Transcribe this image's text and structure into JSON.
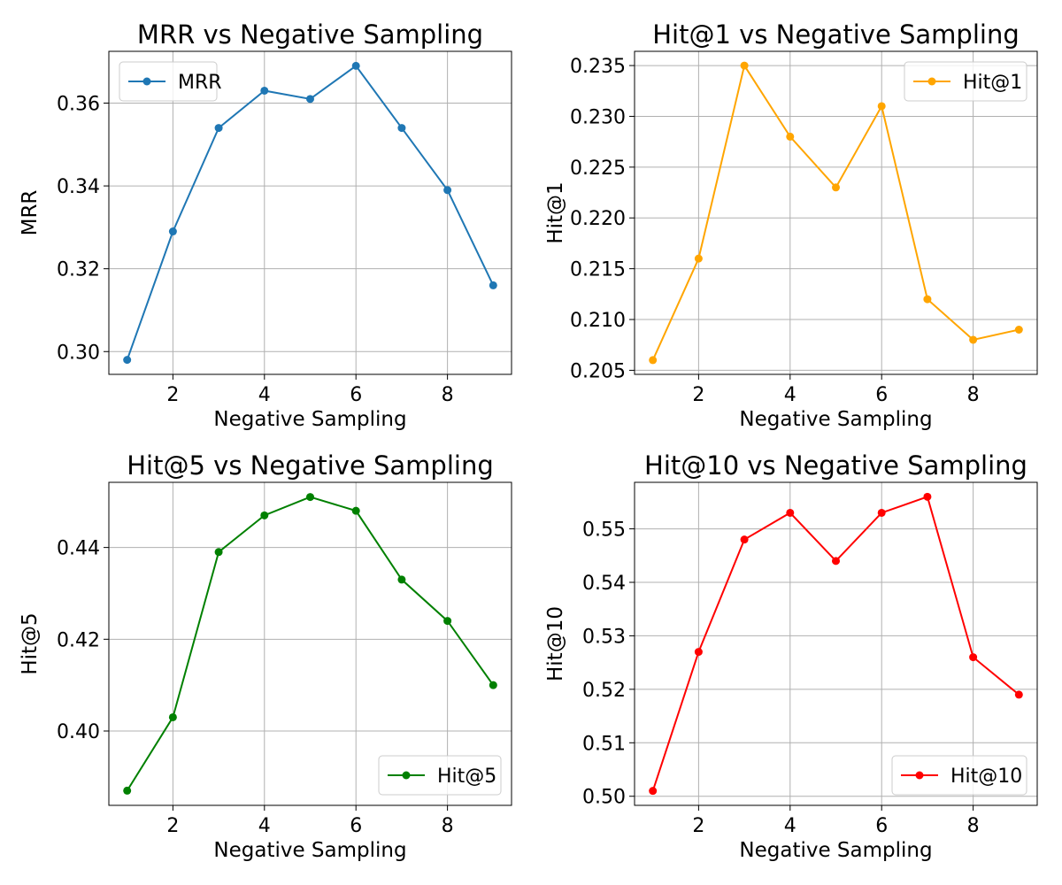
{
  "chart_data": [
    {
      "type": "line",
      "title": "MRR vs Negative Sampling",
      "xlabel": "Negative Sampling",
      "ylabel": "MRR",
      "x": [
        1,
        2,
        3,
        4,
        5,
        6,
        7,
        8,
        9
      ],
      "series": [
        {
          "name": "MRR",
          "color": "#1f77b4",
          "values": [
            0.298,
            0.329,
            0.354,
            0.363,
            0.361,
            0.369,
            0.354,
            0.339,
            0.316
          ]
        }
      ],
      "xlim": [
        0.6,
        9.4
      ],
      "ylim": [
        0.2945,
        0.3725
      ],
      "xticks": [
        2,
        4,
        6,
        8
      ],
      "xtick_labels": [
        "2",
        "4",
        "6",
        "8"
      ],
      "yticks": [
        0.3,
        0.32,
        0.34,
        0.36
      ],
      "ytick_labels": [
        "0.30",
        "0.32",
        "0.34",
        "0.36"
      ],
      "grid": true,
      "legend": "upper left"
    },
    {
      "type": "line",
      "title": "Hit@1 vs Negative Sampling",
      "xlabel": "Negative Sampling",
      "ylabel": "Hit@1",
      "x": [
        1,
        2,
        3,
        4,
        5,
        6,
        7,
        8,
        9
      ],
      "series": [
        {
          "name": "Hit@1",
          "color": "#ffa500",
          "values": [
            0.206,
            0.216,
            0.235,
            0.228,
            0.223,
            0.231,
            0.212,
            0.208,
            0.209
          ]
        }
      ],
      "xlim": [
        0.6,
        9.4
      ],
      "ylim": [
        0.2046,
        0.2364
      ],
      "xticks": [
        2,
        4,
        6,
        8
      ],
      "xtick_labels": [
        "2",
        "4",
        "6",
        "8"
      ],
      "yticks": [
        0.205,
        0.21,
        0.215,
        0.22,
        0.225,
        0.23,
        0.235
      ],
      "ytick_labels": [
        "0.205",
        "0.210",
        "0.215",
        "0.220",
        "0.225",
        "0.230",
        "0.235"
      ],
      "grid": true,
      "legend": "upper right"
    },
    {
      "type": "line",
      "title": "Hit@5 vs Negative Sampling",
      "xlabel": "Negative Sampling",
      "ylabel": "Hit@5",
      "x": [
        1,
        2,
        3,
        4,
        5,
        6,
        7,
        8,
        9
      ],
      "series": [
        {
          "name": "Hit@5",
          "color": "#008000",
          "values": [
            0.387,
            0.403,
            0.439,
            0.447,
            0.451,
            0.448,
            0.433,
            0.424,
            0.41
          ]
        }
      ],
      "xlim": [
        0.6,
        9.4
      ],
      "ylim": [
        0.3838,
        0.4542
      ],
      "xticks": [
        2,
        4,
        6,
        8
      ],
      "xtick_labels": [
        "2",
        "4",
        "6",
        "8"
      ],
      "yticks": [
        0.4,
        0.42,
        0.44
      ],
      "ytick_labels": [
        "0.40",
        "0.42",
        "0.44"
      ],
      "grid": true,
      "legend": "lower right"
    },
    {
      "type": "line",
      "title": "Hit@10 vs Negative Sampling",
      "xlabel": "Negative Sampling",
      "ylabel": "Hit@10",
      "x": [
        1,
        2,
        3,
        4,
        5,
        6,
        7,
        8,
        9
      ],
      "series": [
        {
          "name": "Hit@10",
          "color": "#ff0000",
          "values": [
            0.501,
            0.527,
            0.548,
            0.553,
            0.544,
            0.553,
            0.556,
            0.526,
            0.519
          ]
        }
      ],
      "xlim": [
        0.6,
        9.4
      ],
      "ylim": [
        0.4983,
        0.5587
      ],
      "xticks": [
        2,
        4,
        6,
        8
      ],
      "xtick_labels": [
        "2",
        "4",
        "6",
        "8"
      ],
      "yticks": [
        0.5,
        0.51,
        0.52,
        0.53,
        0.54,
        0.55
      ],
      "ytick_labels": [
        "0.50",
        "0.51",
        "0.52",
        "0.53",
        "0.54",
        "0.55"
      ],
      "grid": true,
      "legend": "lower right"
    }
  ]
}
